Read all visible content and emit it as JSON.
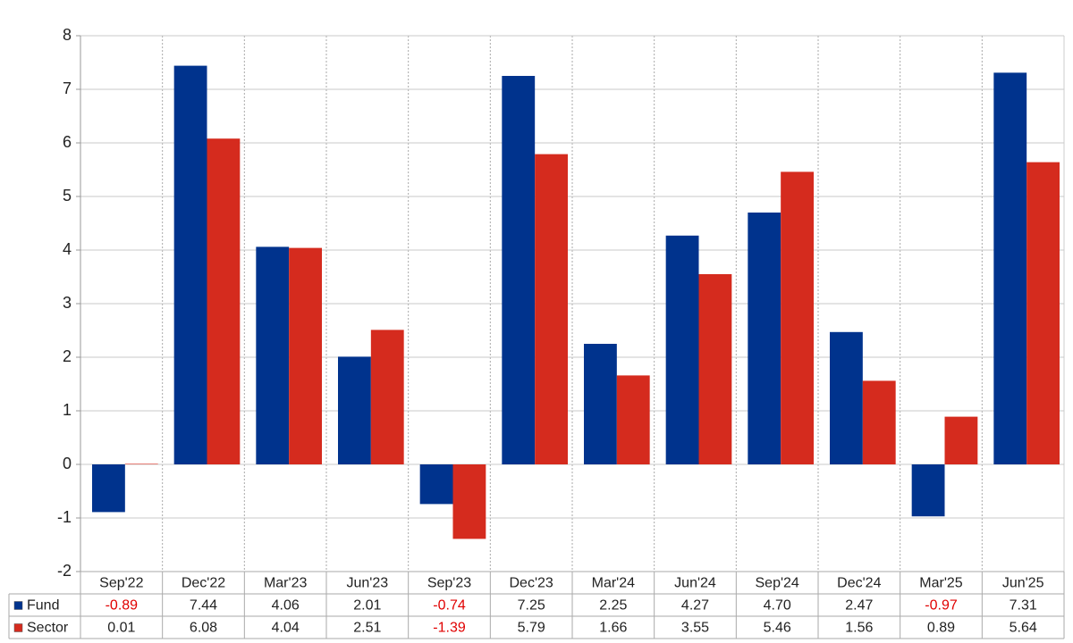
{
  "chart_data": {
    "type": "bar",
    "categories": [
      "Sep'22",
      "Dec'22",
      "Mar'23",
      "Jun'23",
      "Sep'23",
      "Dec'23",
      "Mar'24",
      "Jun'24",
      "Sep'24",
      "Dec'24",
      "Mar'25",
      "Jun'25"
    ],
    "series": [
      {
        "name": "Fund",
        "color": "#00338d",
        "values": [
          -0.89,
          7.44,
          4.06,
          2.01,
          -0.74,
          7.25,
          2.25,
          4.27,
          4.7,
          2.47,
          -0.97,
          7.31
        ],
        "value_labels": [
          "-0.89",
          "7.44",
          "4.06",
          "2.01",
          "-0.74",
          "7.25",
          "2.25",
          "4.27",
          "4.70",
          "2.47",
          "-0.97",
          "7.31"
        ]
      },
      {
        "name": "Sector",
        "color": "#d52b1e",
        "values": [
          0.01,
          6.08,
          4.04,
          2.51,
          -1.39,
          5.79,
          1.66,
          3.55,
          5.46,
          1.56,
          0.89,
          5.64
        ]
      }
    ],
    "ylim": [
      -2,
      8
    ],
    "yticks": [
      -2,
      -1,
      0,
      1,
      2,
      3,
      4,
      5,
      6,
      7,
      8
    ],
    "grid": true
  }
}
